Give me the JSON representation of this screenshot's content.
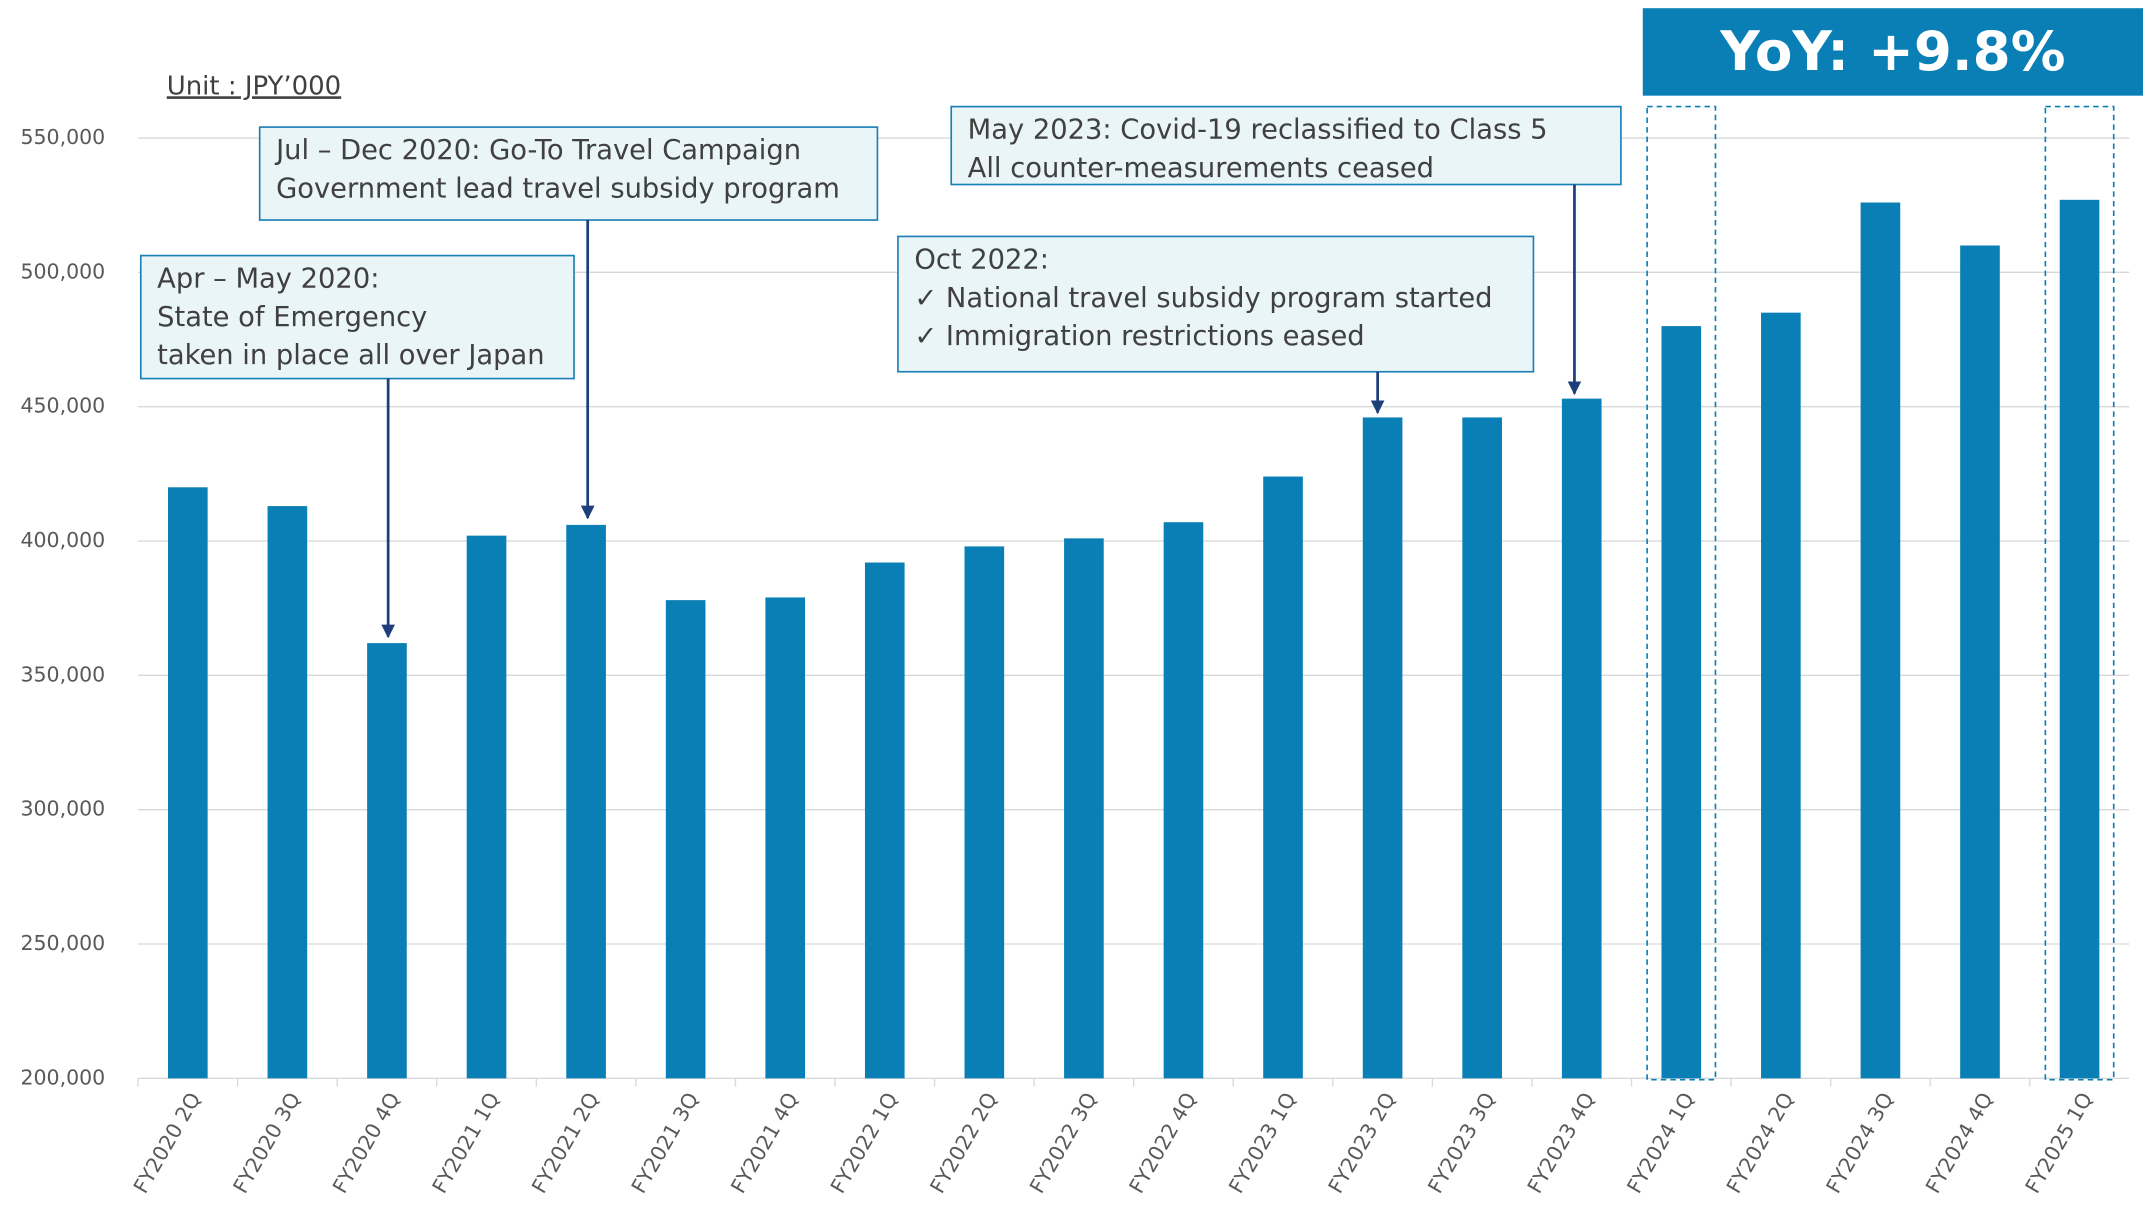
{
  "chart_data": {
    "type": "bar",
    "unit_label": "Unit : JPY’000",
    "headline": "YoY: +9.8%",
    "categories": [
      "FY2020 2Q",
      "FY2020 3Q",
      "FY2020 4Q",
      "FY2021 1Q",
      "FY2021 2Q",
      "FY2021 3Q",
      "FY2021 4Q",
      "FY2022 1Q",
      "FY2022 2Q",
      "FY2022 3Q",
      "FY2022 4Q",
      "FY2023 1Q",
      "FY2023 2Q",
      "FY2023 3Q",
      "FY2023 4Q",
      "FY2024 1Q",
      "FY2024 2Q",
      "FY2024 3Q",
      "FY2024 4Q",
      "FY2025 1Q"
    ],
    "values": [
      420000,
      413000,
      362000,
      402000,
      406000,
      378000,
      379000,
      392000,
      398000,
      401000,
      407000,
      424000,
      446000,
      446000,
      453000,
      480000,
      485000,
      526000,
      510000,
      527000
    ],
    "color": "#0a7fb5",
    "ylim": [
      200000,
      550000
    ],
    "yticks": [
      {
        "value": 200000,
        "label": "200,000"
      },
      {
        "value": 250000,
        "label": "250,000"
      },
      {
        "value": 300000,
        "label": "300,000"
      },
      {
        "value": 350000,
        "label": "350,000"
      },
      {
        "value": 400000,
        "label": "400,000"
      },
      {
        "value": 450000,
        "label": "450,000"
      },
      {
        "value": 500000,
        "label": "500,000"
      },
      {
        "value": 550000,
        "label": "550,000"
      }
    ],
    "grid": true,
    "annotations": [
      {
        "lines": [
          "Apr – May 2020:",
          "State of Emergency",
          "taken in place all over Japan"
        ]
      },
      {
        "lines": [
          "Jul – Dec 2020: Go-To Travel Campaign",
          "Government lead travel subsidy program"
        ]
      },
      {
        "lines": [
          "Oct 2022:",
          "✓ National travel subsidy program started",
          "✓ Immigration restrictions eased"
        ]
      },
      {
        "lines": [
          "May 2023: Covid-19 reclassified to Class 5",
          "All counter-measurements ceased"
        ]
      }
    ]
  }
}
